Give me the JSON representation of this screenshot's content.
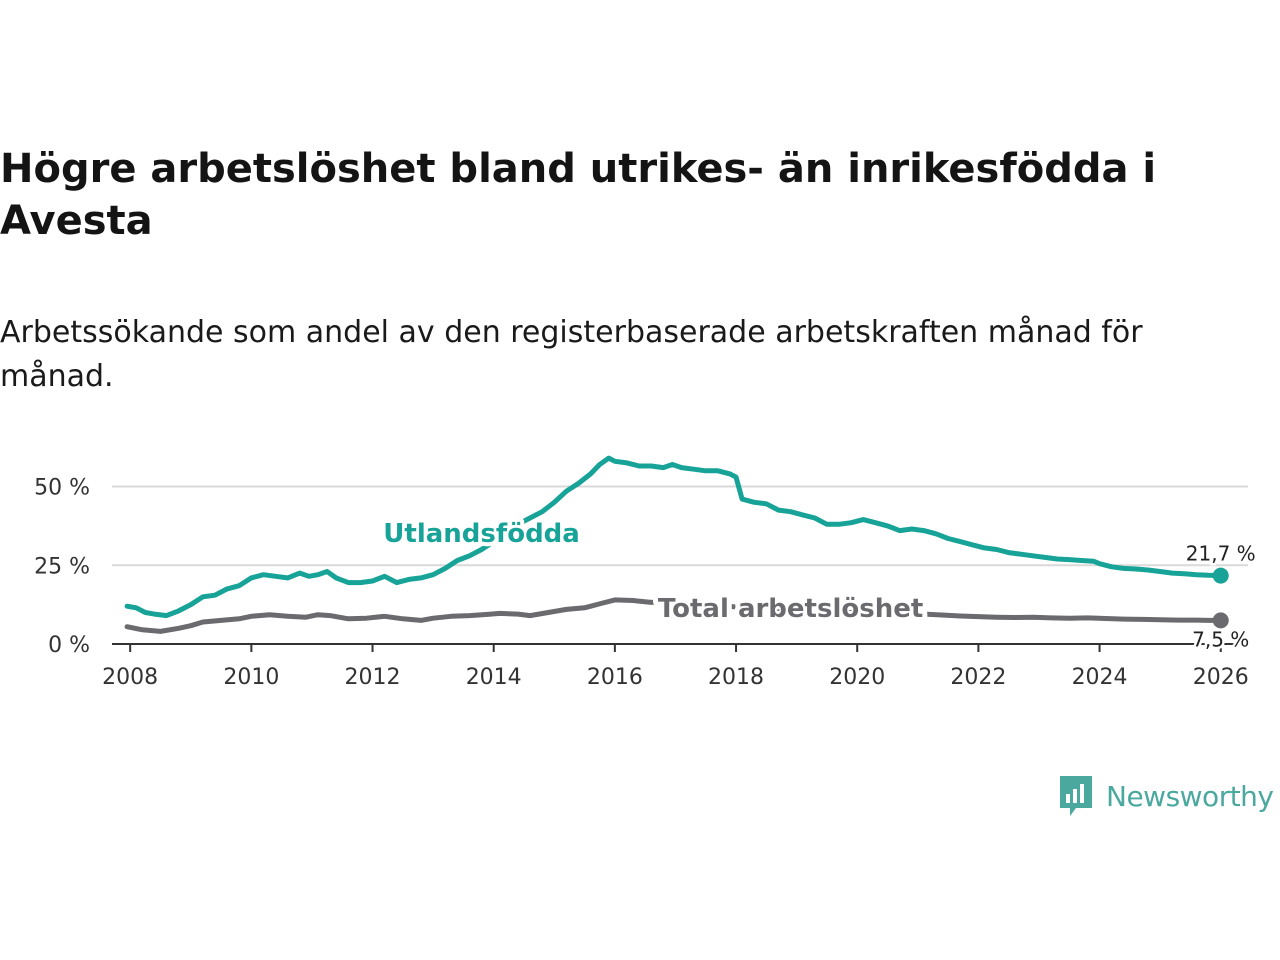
{
  "title": "Högre arbetslöshet bland utrikes- än inrikesfödda i Avesta",
  "subtitle": "Arbetssökande som andel av den registerbaserade arbetskraften månad för månad.",
  "brand": {
    "name": "Newsworthy",
    "color": "#4aa89f",
    "icon": "bar-chart-icon"
  },
  "chart_data": {
    "type": "line",
    "ylim": [
      0,
      60
    ],
    "xlim": [
      2007.7,
      2026.45
    ],
    "yticks": [
      {
        "value": 0,
        "label": "0 %"
      },
      {
        "value": 25,
        "label": "25 %"
      },
      {
        "value": 50,
        "label": "50 %"
      }
    ],
    "xticks": [
      {
        "value": 2008,
        "label": "2008"
      },
      {
        "value": 2010,
        "label": "2010"
      },
      {
        "value": 2012,
        "label": "2012"
      },
      {
        "value": 2014,
        "label": "2014"
      },
      {
        "value": 2016,
        "label": "2016"
      },
      {
        "value": 2018,
        "label": "2018"
      },
      {
        "value": 2020,
        "label": "2020"
      },
      {
        "value": 2022,
        "label": "2022"
      },
      {
        "value": 2024,
        "label": "2024"
      },
      {
        "value": 2026,
        "label": "2026"
      }
    ],
    "series": [
      {
        "name": "Utlandsfödda",
        "color": "#17a398",
        "end_label": "21,7 %",
        "points": [
          [
            2007.95,
            12.0
          ],
          [
            2008.1,
            11.5
          ],
          [
            2008.25,
            10.0
          ],
          [
            2008.4,
            9.5
          ],
          [
            2008.6,
            9.0
          ],
          [
            2008.8,
            10.5
          ],
          [
            2009.0,
            12.5
          ],
          [
            2009.2,
            15.0
          ],
          [
            2009.4,
            15.5
          ],
          [
            2009.6,
            17.5
          ],
          [
            2009.8,
            18.5
          ],
          [
            2010.0,
            21.0
          ],
          [
            2010.2,
            22.0
          ],
          [
            2010.4,
            21.5
          ],
          [
            2010.6,
            21.0
          ],
          [
            2010.8,
            22.5
          ],
          [
            2010.95,
            21.5
          ],
          [
            2011.1,
            22.0
          ],
          [
            2011.25,
            23.0
          ],
          [
            2011.4,
            21.0
          ],
          [
            2011.6,
            19.5
          ],
          [
            2011.8,
            19.5
          ],
          [
            2012.0,
            20.0
          ],
          [
            2012.2,
            21.5
          ],
          [
            2012.4,
            19.5
          ],
          [
            2012.6,
            20.5
          ],
          [
            2012.8,
            21.0
          ],
          [
            2013.0,
            22.0
          ],
          [
            2013.2,
            24.0
          ],
          [
            2013.4,
            26.5
          ],
          [
            2013.6,
            28.0
          ],
          [
            2013.8,
            30.0
          ],
          [
            2014.0,
            32.5
          ],
          [
            2014.2,
            35.5
          ],
          [
            2014.4,
            38.0
          ],
          [
            2014.6,
            40.0
          ],
          [
            2014.8,
            42.0
          ],
          [
            2015.0,
            45.0
          ],
          [
            2015.2,
            48.5
          ],
          [
            2015.4,
            51.0
          ],
          [
            2015.6,
            54.0
          ],
          [
            2015.75,
            57.0
          ],
          [
            2015.9,
            59.0
          ],
          [
            2016.0,
            58.0
          ],
          [
            2016.2,
            57.5
          ],
          [
            2016.4,
            56.5
          ],
          [
            2016.6,
            56.5
          ],
          [
            2016.8,
            56.0
          ],
          [
            2016.95,
            57.0
          ],
          [
            2017.1,
            56.0
          ],
          [
            2017.3,
            55.5
          ],
          [
            2017.5,
            55.0
          ],
          [
            2017.7,
            55.0
          ],
          [
            2017.9,
            54.0
          ],
          [
            2018.0,
            53.0
          ],
          [
            2018.1,
            46.0
          ],
          [
            2018.3,
            45.0
          ],
          [
            2018.5,
            44.5
          ],
          [
            2018.7,
            42.5
          ],
          [
            2018.9,
            42.0
          ],
          [
            2019.1,
            41.0
          ],
          [
            2019.3,
            40.0
          ],
          [
            2019.5,
            38.0
          ],
          [
            2019.7,
            38.0
          ],
          [
            2019.9,
            38.5
          ],
          [
            2020.1,
            39.5
          ],
          [
            2020.3,
            38.5
          ],
          [
            2020.5,
            37.5
          ],
          [
            2020.7,
            36.0
          ],
          [
            2020.9,
            36.5
          ],
          [
            2021.1,
            36.0
          ],
          [
            2021.3,
            35.0
          ],
          [
            2021.5,
            33.5
          ],
          [
            2021.7,
            32.5
          ],
          [
            2021.9,
            31.5
          ],
          [
            2022.1,
            30.5
          ],
          [
            2022.3,
            30.0
          ],
          [
            2022.5,
            29.0
          ],
          [
            2022.7,
            28.5
          ],
          [
            2022.9,
            28.0
          ],
          [
            2023.1,
            27.5
          ],
          [
            2023.3,
            27.0
          ],
          [
            2023.5,
            26.8
          ],
          [
            2023.7,
            26.5
          ],
          [
            2023.9,
            26.3
          ],
          [
            2024.0,
            25.5
          ],
          [
            2024.2,
            24.5
          ],
          [
            2024.4,
            24.0
          ],
          [
            2024.6,
            23.8
          ],
          [
            2024.8,
            23.5
          ],
          [
            2025.0,
            23.0
          ],
          [
            2025.2,
            22.5
          ],
          [
            2025.4,
            22.3
          ],
          [
            2025.6,
            22.0
          ],
          [
            2025.8,
            21.8
          ],
          [
            2026.0,
            21.7
          ]
        ]
      },
      {
        "name": "Total arbetslöshet",
        "color": "#6b6b6f",
        "end_label": "7,5 %",
        "points": [
          [
            2007.95,
            5.5
          ],
          [
            2008.2,
            4.5
          ],
          [
            2008.5,
            4.0
          ],
          [
            2008.8,
            5.0
          ],
          [
            2009.0,
            5.8
          ],
          [
            2009.2,
            7.0
          ],
          [
            2009.5,
            7.5
          ],
          [
            2009.8,
            8.0
          ],
          [
            2010.0,
            8.8
          ],
          [
            2010.3,
            9.3
          ],
          [
            2010.6,
            8.8
          ],
          [
            2010.9,
            8.5
          ],
          [
            2011.1,
            9.3
          ],
          [
            2011.3,
            9.0
          ],
          [
            2011.6,
            8.0
          ],
          [
            2011.9,
            8.2
          ],
          [
            2012.2,
            8.8
          ],
          [
            2012.5,
            8.0
          ],
          [
            2012.8,
            7.5
          ],
          [
            2013.0,
            8.2
          ],
          [
            2013.3,
            8.8
          ],
          [
            2013.6,
            9.0
          ],
          [
            2013.9,
            9.4
          ],
          [
            2014.1,
            9.7
          ],
          [
            2014.4,
            9.5
          ],
          [
            2014.6,
            9.0
          ],
          [
            2014.9,
            10.0
          ],
          [
            2015.2,
            11.0
          ],
          [
            2015.5,
            11.5
          ],
          [
            2015.8,
            13.0
          ],
          [
            2016.0,
            14.0
          ],
          [
            2016.3,
            13.8
          ],
          [
            2016.6,
            13.2
          ],
          [
            2016.9,
            13.5
          ],
          [
            2017.2,
            13.5
          ],
          [
            2017.5,
            12.8
          ],
          [
            2017.8,
            12.2
          ],
          [
            2018.1,
            11.5
          ],
          [
            2018.4,
            11.2
          ],
          [
            2018.7,
            10.8
          ],
          [
            2019.0,
            10.5
          ],
          [
            2019.3,
            10.3
          ],
          [
            2019.6,
            10.0
          ],
          [
            2019.9,
            10.0
          ],
          [
            2020.2,
            10.5
          ],
          [
            2020.5,
            10.2
          ],
          [
            2020.8,
            9.8
          ],
          [
            2021.1,
            9.5
          ],
          [
            2021.4,
            9.2
          ],
          [
            2021.7,
            8.9
          ],
          [
            2022.0,
            8.7
          ],
          [
            2022.3,
            8.5
          ],
          [
            2022.6,
            8.4
          ],
          [
            2022.9,
            8.5
          ],
          [
            2023.2,
            8.3
          ],
          [
            2023.5,
            8.2
          ],
          [
            2023.8,
            8.3
          ],
          [
            2024.1,
            8.1
          ],
          [
            2024.4,
            7.9
          ],
          [
            2024.7,
            7.8
          ],
          [
            2025.0,
            7.7
          ],
          [
            2025.3,
            7.6
          ],
          [
            2025.6,
            7.6
          ],
          [
            2025.8,
            7.5
          ],
          [
            2026.0,
            7.5
          ]
        ]
      }
    ]
  }
}
